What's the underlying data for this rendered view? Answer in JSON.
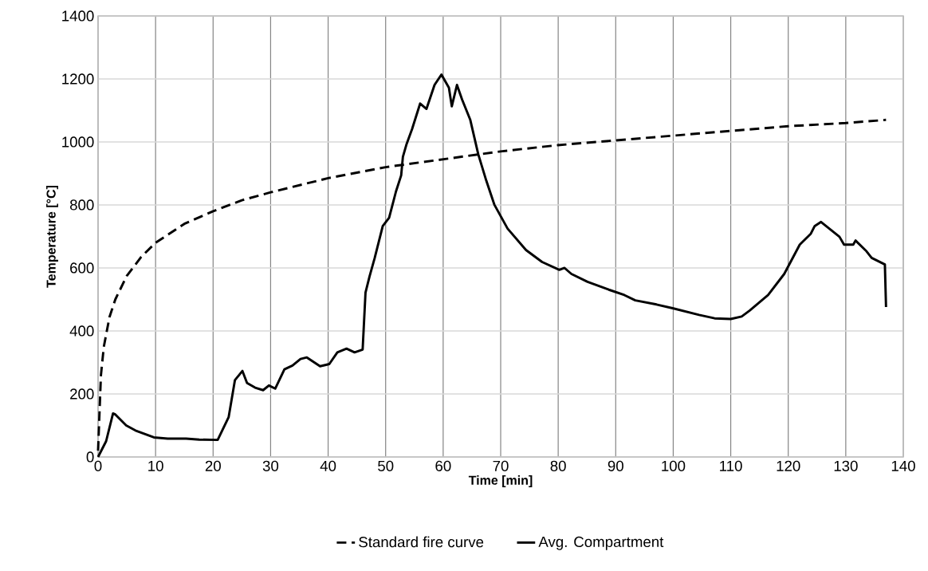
{
  "chart_data": {
    "type": "line",
    "xlabel": "Time [min]",
    "ylabel": "Temperature [°C]",
    "xlim": [
      0,
      140
    ],
    "ylim": [
      0,
      1400
    ],
    "xticks": [
      0,
      10,
      20,
      30,
      40,
      50,
      60,
      70,
      80,
      90,
      100,
      110,
      120,
      130,
      140
    ],
    "yticks": [
      0,
      200,
      400,
      600,
      800,
      1000,
      1200,
      1400
    ],
    "grid": true,
    "legend": "bottom",
    "series": [
      {
        "name": "Standard fire curve",
        "color": "#000000",
        "line_style": "dashed",
        "x": [
          0,
          0.5,
          1,
          2,
          3,
          5,
          7.5,
          10,
          15,
          20,
          25,
          30,
          40,
          50,
          60,
          70,
          80,
          90,
          100,
          110,
          120,
          130,
          137
        ],
        "values": [
          20,
          260,
          350,
          445,
          500,
          575,
          635,
          680,
          740,
          780,
          815,
          840,
          885,
          920,
          945,
          970,
          990,
          1005,
          1020,
          1035,
          1050,
          1060,
          1070
        ]
      },
      {
        "name": "Avg. Compartment",
        "color": "#000000",
        "line_style": "solid",
        "x": [
          0,
          1.4,
          2.6,
          3.0,
          4.9,
          6.5,
          9.7,
          12.1,
          15.3,
          17.6,
          20.8,
          22.7,
          23.8,
          25.1,
          25.9,
          27.3,
          28.7,
          29.7,
          30.8,
          32.4,
          33.8,
          35.2,
          36.3,
          38.6,
          40.2,
          41.6,
          43.2,
          44.6,
          46.0,
          46.5,
          47.2,
          48.1,
          49.5,
          50.6,
          51.8,
          52.7,
          53.0,
          53.6,
          54.6,
          56.0,
          57.1,
          58.5,
          59.7,
          61.0,
          61.5,
          62.4,
          63.3,
          64.7,
          66.1,
          67.5,
          68.9,
          71.2,
          74.4,
          77.2,
          80.2,
          81.1,
          82.3,
          85.1,
          88.8,
          91.5,
          93.4,
          97.1,
          99.9,
          104.5,
          107.2,
          110.0,
          111.9,
          113.3,
          116.5,
          119.3,
          122.0,
          123.9,
          124.6,
          125.7,
          128.9,
          129.7,
          131.3,
          131.7,
          133.6,
          134.5,
          136.8,
          137.0
        ],
        "values": [
          0,
          50,
          138,
          135,
          100,
          84,
          62,
          58,
          58,
          55,
          54,
          126,
          244,
          273,
          235,
          220,
          212,
          227,
          217,
          278,
          290,
          311,
          316,
          288,
          295,
          332,
          344,
          332,
          341,
          522,
          573,
          632,
          733,
          759,
          843,
          894,
          953,
          991,
          1041,
          1122,
          1105,
          1181,
          1214,
          1172,
          1113,
          1181,
          1134,
          1071,
          961,
          877,
          801,
          725,
          657,
          619,
          594,
          600,
          581,
          556,
          531,
          514,
          497,
          484,
          472,
          451,
          440,
          438,
          446,
          465,
          514,
          581,
          674,
          708,
          733,
          746,
          699,
          674,
          674,
          687,
          653,
          632,
          611,
          476
        ]
      }
    ]
  }
}
